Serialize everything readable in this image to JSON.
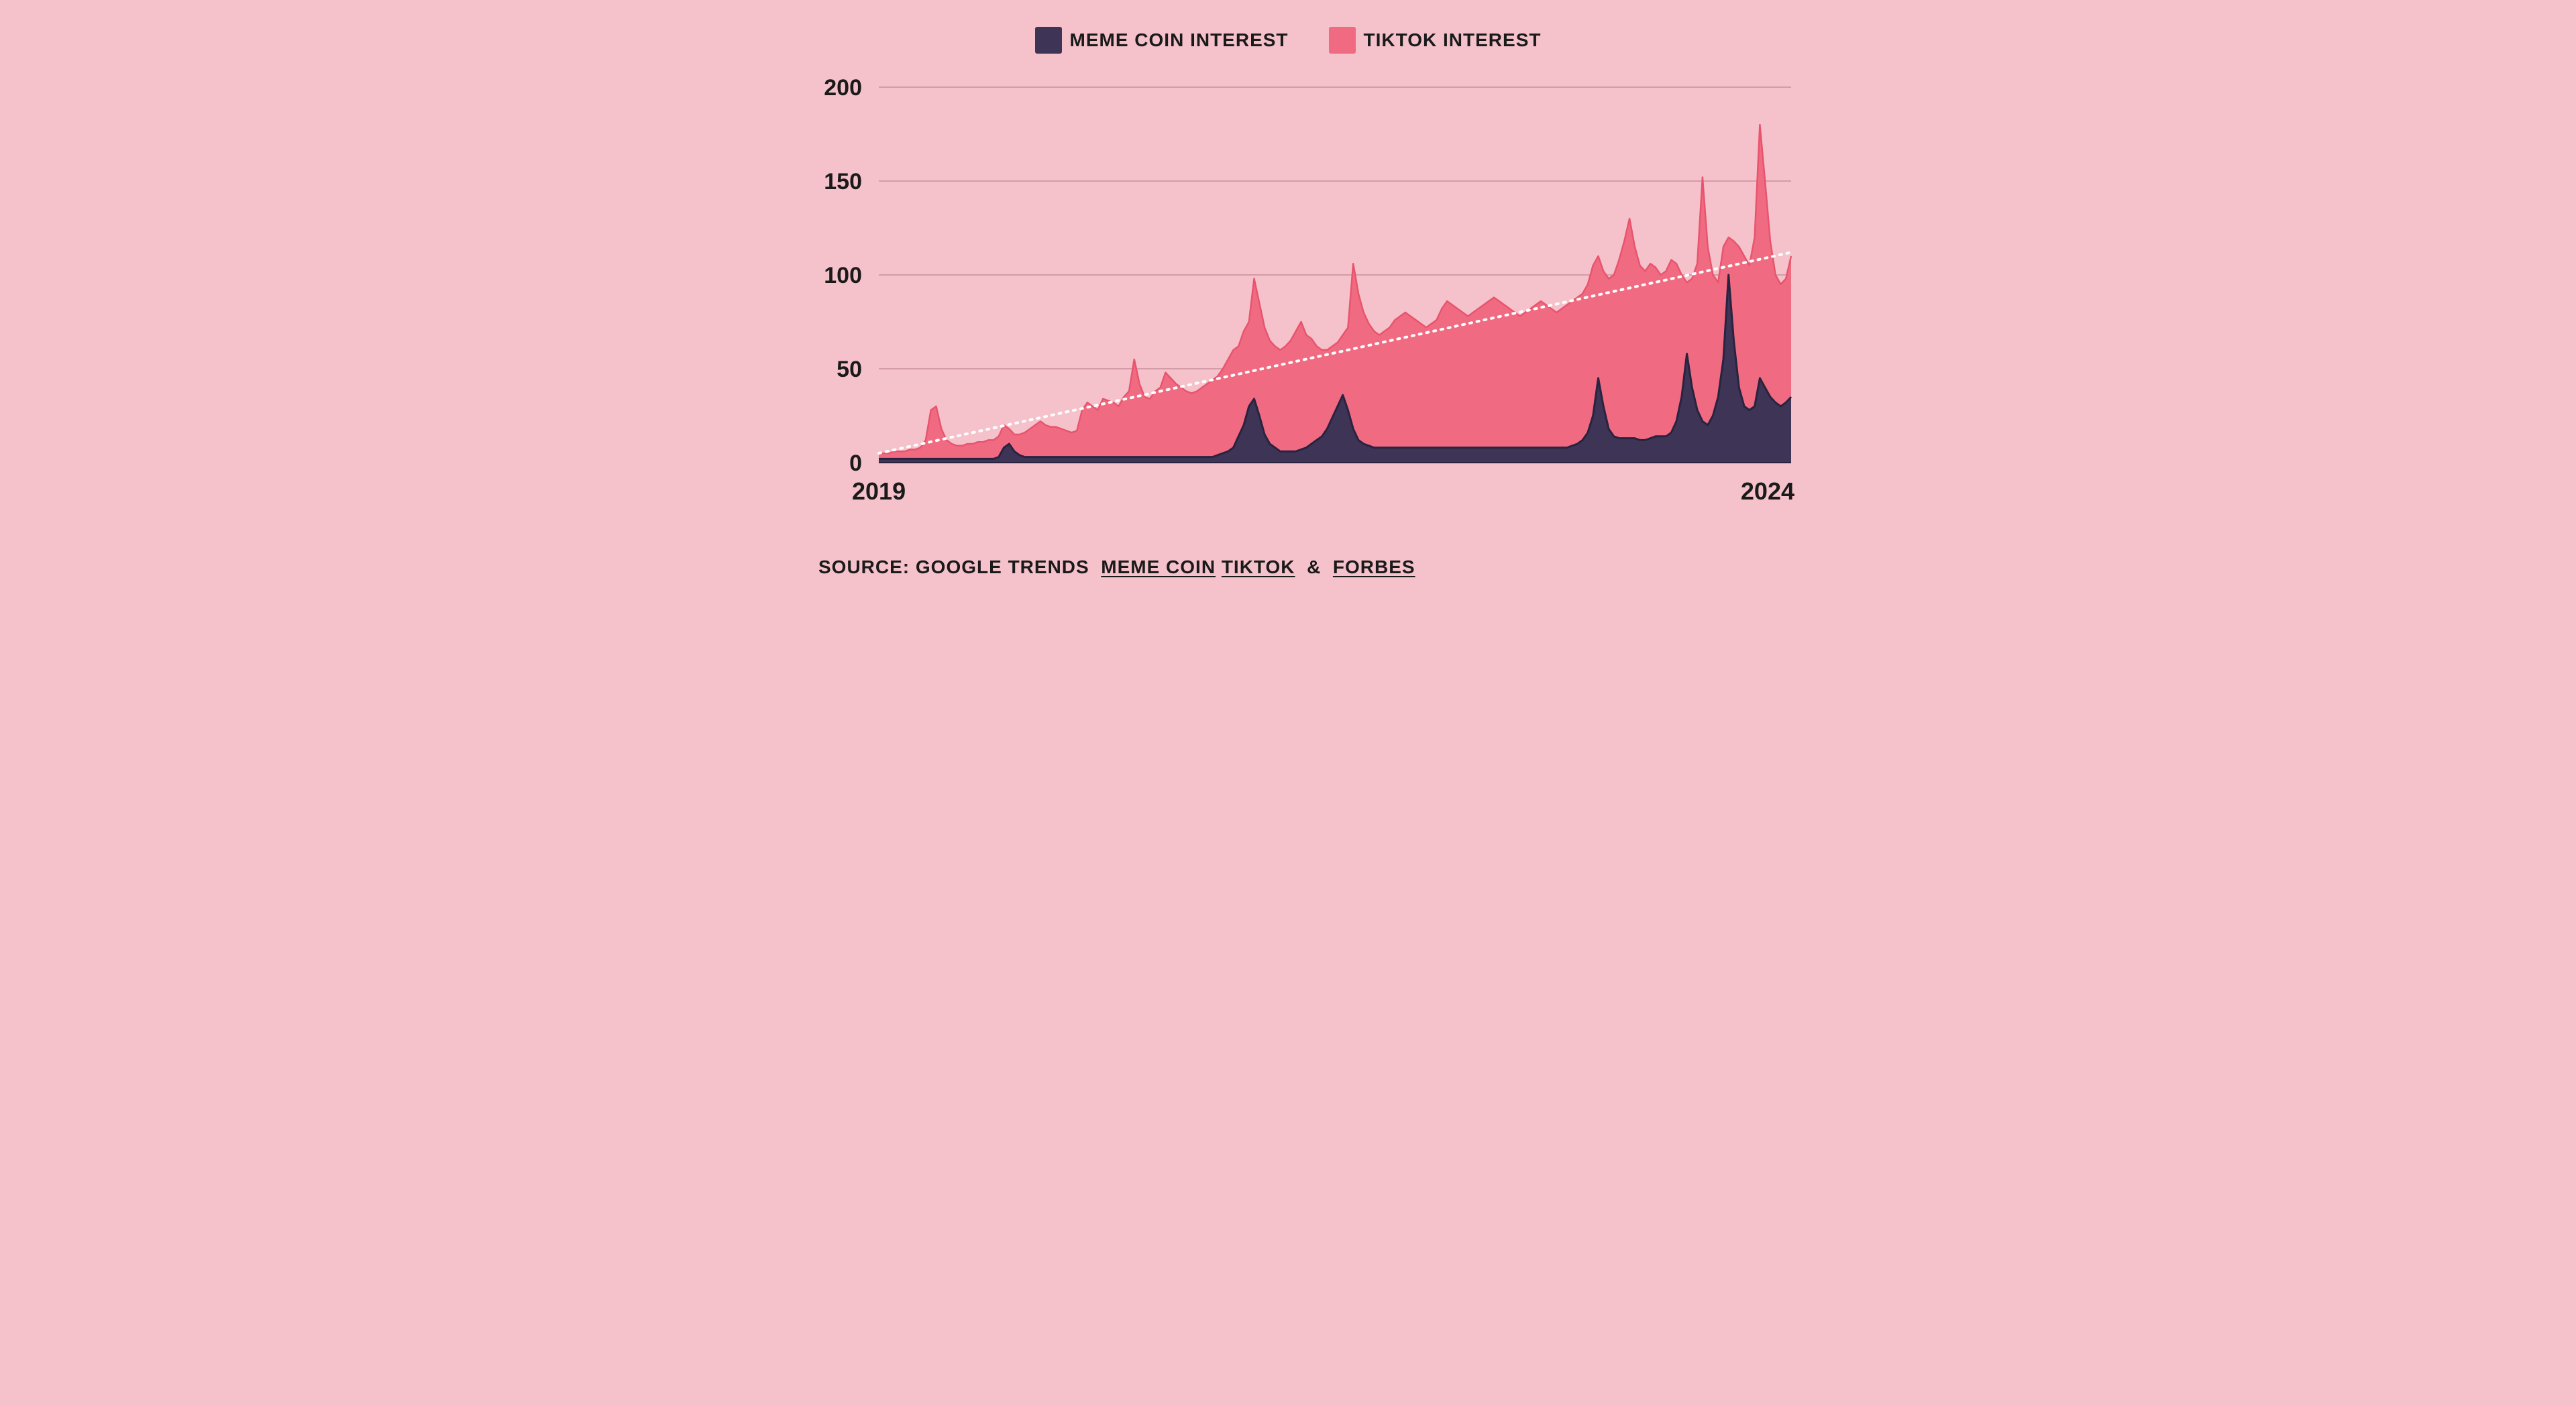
{
  "chart": {
    "type": "area",
    "background_color": "#f5c2cb",
    "plot_background": "#f5c2cb",
    "grid_color": "#c98f9a",
    "grid_stroke_width": 1.5,
    "text_color": "#1a1a1a",
    "trendline_color": "#ffffff",
    "trendline_dash": "3 8",
    "trendline_width": 4,
    "trendline_start_y": 5,
    "trendline_end_y": 112,
    "ylim": [
      0,
      200
    ],
    "yticks": [
      0,
      50,
      100,
      150,
      200
    ],
    "xlim": [
      "2019",
      "2024"
    ],
    "xticks": [
      "2019",
      "2024"
    ],
    "series": [
      {
        "name": "TIKTOK INTEREST",
        "key": "tiktok",
        "fill_color": "#f06b81",
        "stroke_color": "#e8546d",
        "stroke_width": 2.5,
        "fill_opacity": 1,
        "data": [
          5,
          5,
          5,
          6,
          6,
          6,
          7,
          7,
          8,
          12,
          28,
          30,
          18,
          12,
          10,
          9,
          9,
          10,
          10,
          11,
          11,
          12,
          12,
          14,
          20,
          18,
          15,
          15,
          16,
          18,
          20,
          22,
          20,
          19,
          19,
          18,
          17,
          16,
          17,
          28,
          32,
          30,
          28,
          34,
          33,
          32,
          30,
          35,
          38,
          55,
          42,
          35,
          34,
          38,
          40,
          48,
          45,
          42,
          40,
          38,
          37,
          38,
          40,
          42,
          44,
          46,
          50,
          55,
          60,
          62,
          70,
          75,
          98,
          85,
          72,
          65,
          62,
          60,
          62,
          65,
          70,
          75,
          68,
          66,
          62,
          60,
          60,
          62,
          64,
          68,
          72,
          106,
          90,
          80,
          74,
          70,
          68,
          70,
          72,
          76,
          78,
          80,
          78,
          76,
          74,
          72,
          74,
          76,
          82,
          86,
          84,
          82,
          80,
          78,
          80,
          82,
          84,
          86,
          88,
          86,
          84,
          82,
          80,
          78,
          80,
          82,
          84,
          86,
          84,
          82,
          80,
          82,
          84,
          86,
          88,
          90,
          95,
          105,
          110,
          102,
          98,
          100,
          108,
          118,
          130,
          115,
          105,
          102,
          106,
          104,
          100,
          102,
          108,
          106,
          100,
          96,
          98,
          106,
          152,
          115,
          100,
          96,
          115,
          120,
          118,
          115,
          110,
          105,
          120,
          180,
          150,
          118,
          100,
          95,
          98,
          110
        ]
      },
      {
        "name": "MEME COIN INTEREST",
        "key": "meme",
        "fill_color": "#3d3456",
        "stroke_color": "#2a2340",
        "stroke_width": 3,
        "fill_opacity": 1,
        "data": [
          2,
          2,
          2,
          2,
          2,
          2,
          2,
          2,
          2,
          2,
          2,
          2,
          2,
          2,
          2,
          2,
          2,
          2,
          2,
          2,
          2,
          2,
          2,
          3,
          8,
          10,
          6,
          4,
          3,
          3,
          3,
          3,
          3,
          3,
          3,
          3,
          3,
          3,
          3,
          3,
          3,
          3,
          3,
          3,
          3,
          3,
          3,
          3,
          3,
          3,
          3,
          3,
          3,
          3,
          3,
          3,
          3,
          3,
          3,
          3,
          3,
          3,
          3,
          3,
          3,
          4,
          5,
          6,
          8,
          14,
          20,
          30,
          34,
          25,
          15,
          10,
          8,
          6,
          6,
          6,
          6,
          7,
          8,
          10,
          12,
          14,
          18,
          24,
          30,
          36,
          28,
          18,
          12,
          10,
          9,
          8,
          8,
          8,
          8,
          8,
          8,
          8,
          8,
          8,
          8,
          8,
          8,
          8,
          8,
          8,
          8,
          8,
          8,
          8,
          8,
          8,
          8,
          8,
          8,
          8,
          8,
          8,
          8,
          8,
          8,
          8,
          8,
          8,
          8,
          8,
          8,
          8,
          8,
          9,
          10,
          12,
          16,
          25,
          45,
          30,
          18,
          14,
          13,
          13,
          13,
          13,
          12,
          12,
          13,
          14,
          14,
          14,
          16,
          22,
          35,
          58,
          40,
          28,
          22,
          20,
          25,
          35,
          55,
          100,
          65,
          40,
          30,
          28,
          30,
          45,
          40,
          35,
          32,
          30,
          32,
          35
        ]
      }
    ],
    "legend": {
      "position": "top",
      "items": [
        {
          "label": "MEME COIN INTEREST",
          "color": "#3d3456"
        },
        {
          "label": "TIKTOK INTEREST",
          "color": "#f06b81"
        }
      ],
      "label_fontsize": 28,
      "swatch_size": 40
    },
    "axis_label_fontsize": 34,
    "axis_label_fontweight": "bold"
  },
  "source": {
    "prefix": "SOURCE: GOOGLE TRENDS",
    "link1": "MEME COIN",
    "link2": "TIKTOK",
    "amp": "&",
    "link3": "FORBES"
  }
}
